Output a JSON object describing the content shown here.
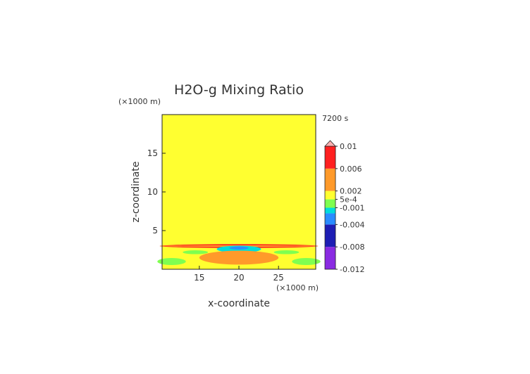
{
  "chart_data": {
    "type": "heatmap",
    "title": "H2O-g Mixing Ratio",
    "time_label": "7200 s",
    "xlabel": "x-coordinate",
    "ylabel": "z-coordinate",
    "x_unit": "(×1000 m)",
    "y_unit": "(×1000 m)",
    "xlim": [
      10.3,
      29.7
    ],
    "ylim": [
      0,
      20
    ],
    "x_ticks": [
      15,
      20,
      25
    ],
    "y_ticks": [
      5,
      10,
      15
    ],
    "background_value": 0.0005,
    "fields": [
      {
        "name": "warm layer",
        "x_center": 20.0,
        "z_center": 3.0,
        "x_half": 10.0,
        "z_half": 0.25,
        "value": 0.006
      },
      {
        "name": "band",
        "x_center": 20.0,
        "z_center": 3.0,
        "x_half": 10.0,
        "z_half": 0.1,
        "value": 0.004
      },
      {
        "name": "dry patch",
        "x_center": 20.0,
        "z_center": 2.6,
        "x_half": 2.8,
        "z_half": 0.45,
        "value": -0.002
      },
      {
        "name": "core",
        "x_center": 20.0,
        "z_center": 2.75,
        "x_half": 1.2,
        "z_half": 0.2,
        "value": -0.004
      },
      {
        "name": "moist lobe",
        "x_center": 20.0,
        "z_center": 1.5,
        "x_half": 5.0,
        "z_half": 0.9,
        "value": 0.002
      },
      {
        "name": "lower green left",
        "x_center": 11.5,
        "z_center": 1.0,
        "x_half": 1.8,
        "z_half": 0.45,
        "value": -0.001
      },
      {
        "name": "lower green right",
        "x_center": 28.5,
        "z_center": 1.0,
        "x_half": 1.8,
        "z_half": 0.45,
        "value": -0.001
      },
      {
        "name": "side green left",
        "x_center": 14.5,
        "z_center": 2.2,
        "x_half": 1.6,
        "z_half": 0.25,
        "value": -0.001
      },
      {
        "name": "side green right",
        "x_center": 26.0,
        "z_center": 2.2,
        "x_half": 1.6,
        "z_half": 0.25,
        "value": -0.001
      }
    ],
    "colorbar": {
      "labels": [
        {
          "value": 0.01,
          "text": "0.01"
        },
        {
          "value": 0.006,
          "text": "0.006"
        },
        {
          "value": 0.002,
          "text": "0.002"
        },
        {
          "value": 0.0005,
          "text": "5e-4"
        },
        {
          "value": -0.001,
          "text": "-0.001"
        },
        {
          "value": -0.004,
          "text": "-0.004"
        },
        {
          "value": -0.008,
          "text": "-0.008"
        },
        {
          "value": -0.012,
          "text": "-0.012"
        }
      ],
      "stops": [
        {
          "value": -0.012,
          "color": "#8a2be2"
        },
        {
          "value": -0.008,
          "color": "#1e1eb4"
        },
        {
          "value": -0.004,
          "color": "#2a8cff"
        },
        {
          "value": -0.002,
          "color": "#00dcdc"
        },
        {
          "value": -0.001,
          "color": "#7fff50"
        },
        {
          "value": 0.0005,
          "color": "#ffff30"
        },
        {
          "value": 0.002,
          "color": "#ff9a2a"
        },
        {
          "value": 0.006,
          "color": "#ff2020"
        },
        {
          "value": 0.01,
          "color": "#ffb0b0"
        }
      ],
      "extend": "max"
    }
  }
}
